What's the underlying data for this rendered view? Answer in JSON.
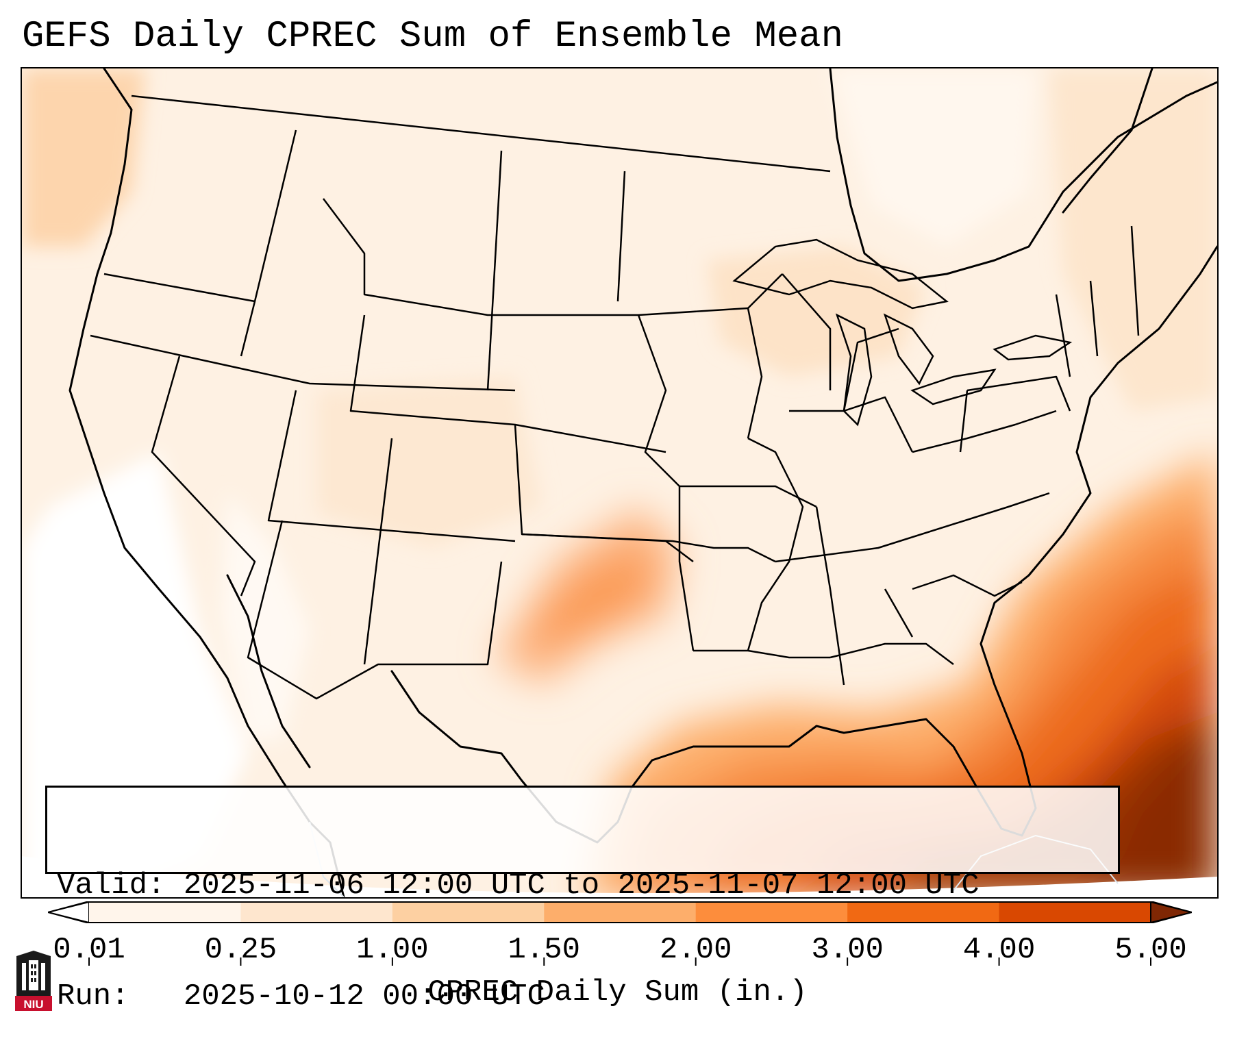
{
  "title": "GEFS Daily CPREC Sum of Ensemble Mean",
  "info": {
    "valid_line": "Valid: 2025-11-06 12:00 UTC to 2025-11-07 12:00 UTC",
    "run_line": "Run:   2025-10-12 00:00 UTC"
  },
  "colorbar": {
    "label": "CPREC Daily Sum (in.)",
    "ticks": [
      "0.01",
      "0.25",
      "1.00",
      "1.50",
      "2.00",
      "3.00",
      "4.00",
      "5.00"
    ],
    "colors": [
      "#fff5eb",
      "#fee6ce",
      "#fdd0a2",
      "#fdae6b",
      "#fd8d3c",
      "#f16913",
      "#d94801",
      "#8c2d04"
    ],
    "under_color": "#ffffff",
    "over_color": "#7f2704",
    "extend": "both"
  },
  "logo": {
    "text": "NIU"
  },
  "colors": {
    "background": "#ffffff",
    "border": "#000000",
    "state_lines": "#000000"
  }
}
